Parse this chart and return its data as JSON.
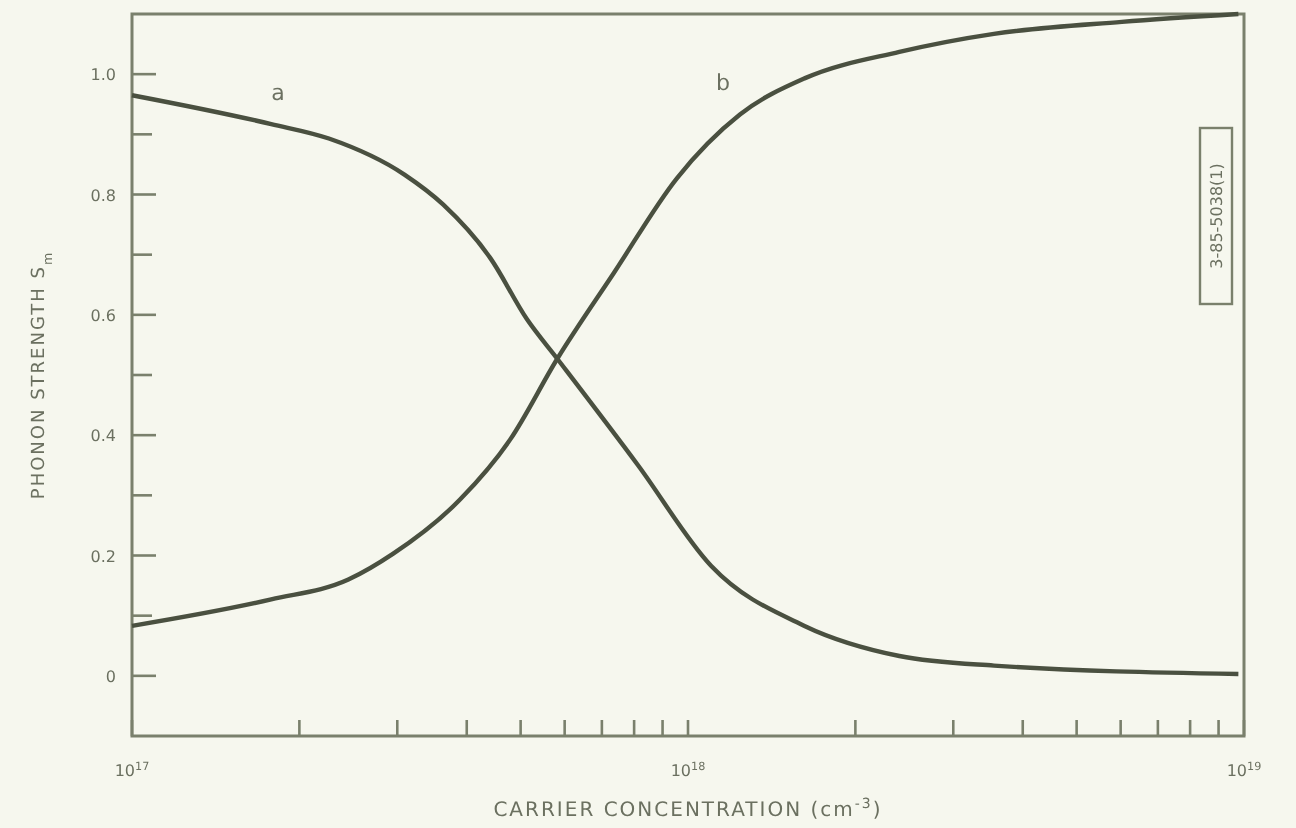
{
  "chart_data": {
    "type": "line",
    "xlabel": "CARRIER CONCENTRATION (cm$^{-3}$)",
    "ylabel": "PHONON STRENGTH S$_{m}$",
    "log": "x",
    "xlim": [
      1e+17,
      1e+19
    ],
    "ylim": [
      -0.1,
      1.1
    ],
    "xticks": [
      {
        "value": 1e+17,
        "label": "10$^{17}$"
      },
      {
        "value": 2e+17,
        "label": null
      },
      {
        "value": 3e+17,
        "label": null
      },
      {
        "value": 4e+17,
        "label": null
      },
      {
        "value": 5e+17,
        "label": null
      },
      {
        "value": 6e+17,
        "label": null
      },
      {
        "value": 7e+17,
        "label": null
      },
      {
        "value": 8e+17,
        "label": null
      },
      {
        "value": 9e+17,
        "label": null
      },
      {
        "value": 1e+18,
        "label": "10$^{18}$"
      },
      {
        "value": 2e+18,
        "label": null
      },
      {
        "value": 3e+18,
        "label": null
      },
      {
        "value": 4e+18,
        "label": null
      },
      {
        "value": 5e+18,
        "label": null
      },
      {
        "value": 6e+18,
        "label": null
      },
      {
        "value": 7e+18,
        "label": null
      },
      {
        "value": 8e+18,
        "label": null
      },
      {
        "value": 9e+18,
        "label": null
      },
      {
        "value": 1e+19,
        "label": "10$^{19}$"
      }
    ],
    "yticks": [
      0,
      {
        "value": 0.1,
        "label": null
      },
      0.2,
      {
        "value": 0.3,
        "label": null
      },
      0.4,
      {
        "value": 0.5,
        "label": null
      },
      0.6,
      {
        "value": 0.7,
        "label": null
      },
      0.8,
      {
        "value": 0.9,
        "label": null
      },
      {
        "value": 1,
        "label": "1.0"
      }
    ],
    "grid": false,
    "marker": "none",
    "line_style": "solid",
    "annotations": [
      "3-85-5038(1)"
    ],
    "series": [
      {
        "name": "a",
        "color": "#4a5040",
        "x": [
          1e+17,
          1.78e+17,
          2.26e+17,
          3.09e+17,
          3.63e+17,
          4.42e+17,
          5.13e+17,
          5.82e+17,
          8.13e+17,
          1.1e+18,
          1.62e+18,
          2.4e+18,
          3.55e+18,
          9.77e+18
        ],
        "values": [
          0.965,
          0.917,
          0.893,
          0.833,
          0.783,
          0.693,
          0.593,
          0.527,
          0.35,
          0.183,
          0.083,
          0.033,
          0.017,
          0.003
        ]
      },
      {
        "name": "b",
        "color": "#4a5040",
        "x": [
          1e+17,
          1.78e+17,
          2.45e+17,
          2.95e+17,
          3.89e+17,
          4.79e+17,
          5.82e+17,
          7.36e+17,
          9.55e+17,
          1.24e+18,
          1.62e+18,
          2.4e+18,
          3.55e+18,
          6.03e+18,
          9.77e+18
        ],
        "values": [
          0.083,
          0.127,
          0.16,
          0.203,
          0.293,
          0.393,
          0.527,
          0.67,
          0.827,
          0.933,
          0.993,
          1.037,
          1.067,
          1.087,
          1.1
        ]
      }
    ]
  }
}
